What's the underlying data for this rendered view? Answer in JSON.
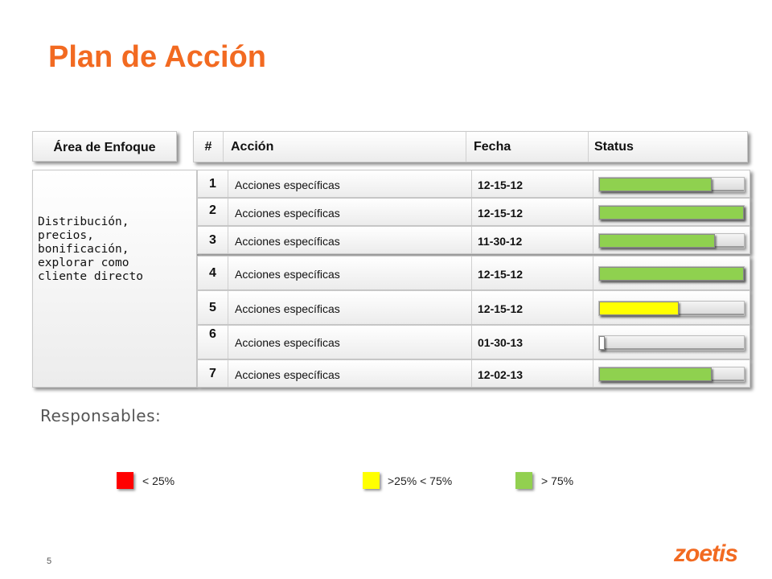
{
  "title": "Plan de Acción",
  "focus_area": {
    "header": "Área de Enfoque",
    "text": "Distribución,\nprecios,\nbonificación,\nexplorar como\ncliente directo"
  },
  "table": {
    "headers": {
      "num": "#",
      "accion": "Acción",
      "fecha": "Fecha",
      "status": "Status"
    },
    "rows": [
      {
        "num": "1",
        "accion": "Acciones específicas",
        "fecha": "12-15-12",
        "progress": 0.78,
        "color": "#8fd14f"
      },
      {
        "num": "2",
        "accion": "Acciones específicas",
        "fecha": "12-15-12",
        "progress": 1.0,
        "color": "#8fd14f"
      },
      {
        "num": "3",
        "accion": "Acciones específicas",
        "fecha": "11-30-12",
        "progress": 0.8,
        "color": "#8fd14f"
      },
      {
        "num": "4",
        "accion": "Acciones específicas",
        "fecha": "12-15-12",
        "progress": 1.0,
        "color": "#8fd14f"
      },
      {
        "num": "5",
        "accion": "Acciones específicas",
        "fecha": "12-15-12",
        "progress": 0.55,
        "color": "#ffff00"
      },
      {
        "num": "6",
        "accion": "Acciones específicas",
        "fecha": "01-30-13",
        "progress": 0.03,
        "color": "#ffffff"
      },
      {
        "num": "7",
        "accion": "Acciones específicas",
        "fecha": "12-02-13",
        "progress": 0.78,
        "color": "#8fd14f"
      }
    ]
  },
  "responsables_label": "Responsables:",
  "legend": [
    {
      "label": "< 25%",
      "color": "#ff0000"
    },
    {
      "label": ">25% < 75%",
      "color": "#ffff00"
    },
    {
      "label": "> 75%",
      "color": "#92d050"
    }
  ],
  "page_number": "5",
  "logo_text": "zoetis",
  "colors": {
    "accent": "#f26a21"
  }
}
